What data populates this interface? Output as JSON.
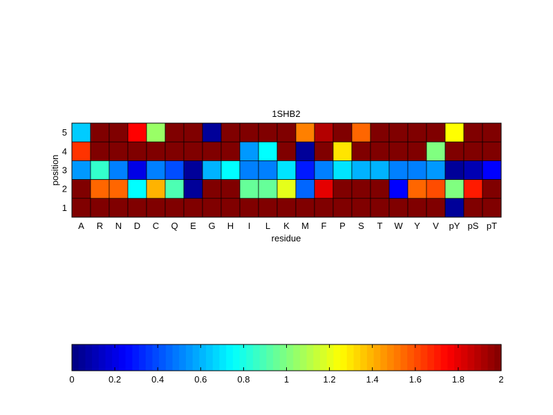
{
  "chart_data": {
    "type": "heatmap",
    "title": "1SHB2",
    "xlabel": "residue",
    "ylabel": "position",
    "x_categories": [
      "A",
      "R",
      "N",
      "D",
      "C",
      "Q",
      "E",
      "G",
      "H",
      "I",
      "L",
      "K",
      "M",
      "F",
      "P",
      "S",
      "T",
      "W",
      "Y",
      "V",
      "pY",
      "pS",
      "pT"
    ],
    "y_categories": [
      "5",
      "4",
      "3",
      "2",
      "1"
    ],
    "values": [
      [
        0.65,
        2.0,
        2.0,
        1.75,
        1.05,
        2.0,
        2.0,
        0.05,
        2.0,
        2.0,
        2.0,
        2.0,
        1.5,
        1.9,
        2.0,
        1.55,
        2.0,
        2.0,
        2.0,
        2.0,
        1.25,
        2.0,
        2.0
      ],
      [
        1.65,
        2.0,
        2.0,
        2.0,
        2.0,
        2.0,
        2.0,
        2.0,
        2.0,
        0.55,
        0.75,
        2.0,
        0.05,
        2.0,
        1.3,
        2.0,
        2.0,
        2.0,
        2.0,
        1.0,
        2.0,
        2.0,
        2.0
      ],
      [
        0.55,
        0.85,
        0.5,
        0.2,
        0.5,
        0.4,
        0.05,
        0.6,
        0.75,
        0.5,
        0.5,
        0.7,
        0.3,
        0.5,
        0.7,
        0.6,
        0.6,
        0.5,
        0.5,
        0.55,
        0.05,
        0.1,
        0.25
      ],
      [
        2.0,
        1.55,
        1.55,
        0.75,
        1.4,
        0.9,
        0.05,
        2.0,
        2.0,
        0.95,
        0.95,
        1.2,
        0.45,
        1.8,
        2.0,
        2.0,
        2.0,
        0.25,
        1.55,
        1.6,
        1.0,
        1.7,
        2.0
      ],
      [
        2.0,
        2.0,
        2.0,
        2.0,
        2.0,
        2.0,
        2.0,
        2.0,
        2.0,
        2.0,
        2.0,
        2.0,
        2.0,
        2.0,
        2.0,
        2.0,
        2.0,
        2.0,
        2.0,
        2.0,
        0.05,
        2.0,
        2.0
      ]
    ],
    "colormap": "jet",
    "clim": [
      0,
      2
    ],
    "colorbar": {
      "orientation": "horizontal",
      "placement": "bottom",
      "ticks": [
        "0",
        "0.2",
        "0.4",
        "0.6",
        "0.8",
        "1",
        "1.2",
        "1.4",
        "1.6",
        "1.8",
        "2"
      ]
    },
    "grid": true
  }
}
